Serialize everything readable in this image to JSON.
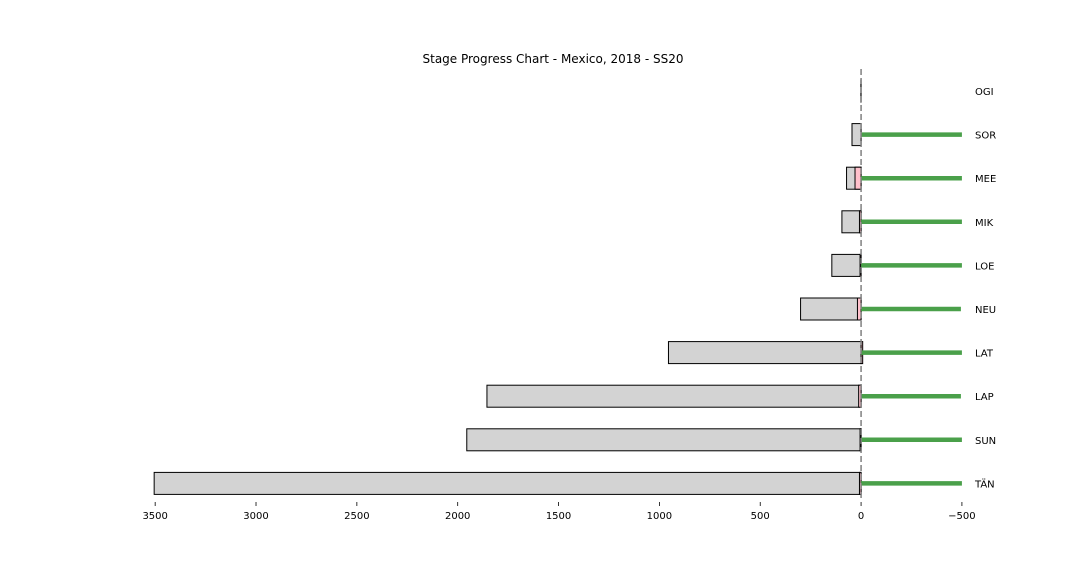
{
  "chart_data": {
    "type": "bar",
    "title": "Stage Progress Chart - Mexico, 2018 - SS20",
    "xlim": [
      3600,
      -550
    ],
    "x_ticks": [
      3500,
      3000,
      2500,
      2000,
      1500,
      1000,
      500,
      0,
      -500
    ],
    "x_tick_labels": [
      "3500",
      "3000",
      "2500",
      "2000",
      "1500",
      "1000",
      "500",
      "0",
      "−500"
    ],
    "reference_line": 0,
    "categories": [
      "OGI",
      "SOR",
      "MEE",
      "MIK",
      "LOE",
      "NEU",
      "LAT",
      "LAP",
      "SUN",
      "TÄN"
    ],
    "series": [
      {
        "values": [
          1,
          45,
          72,
          95,
          145,
          300,
          955,
          1855,
          1955,
          3505
        ],
        "color": "#d3d3d3"
      },
      {
        "values": [
          0,
          0,
          30,
          8,
          5,
          18,
          -8,
          12,
          5,
          8
        ],
        "color": "#ffc0cb"
      },
      {
        "values": [
          0,
          -500,
          -500,
          -500,
          -500,
          -495,
          -500,
          -495,
          -500,
          -500
        ],
        "color": "#4aa04a"
      }
    ],
    "grid": false,
    "legend": "none"
  }
}
